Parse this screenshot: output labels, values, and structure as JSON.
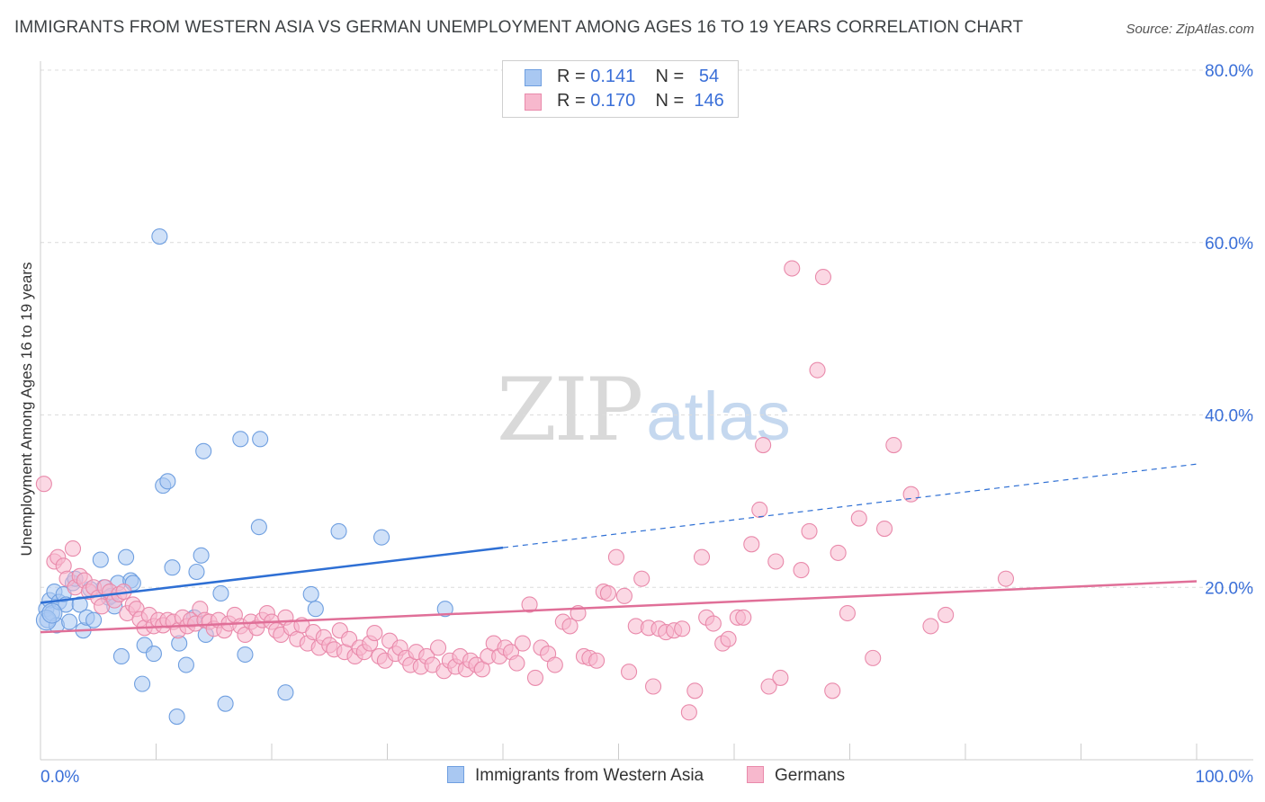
{
  "title": "IMMIGRANTS FROM WESTERN ASIA VS GERMAN UNEMPLOYMENT AMONG AGES 16 TO 19 YEARS CORRELATION CHART",
  "source": "Source: ZipAtlas.com",
  "watermark": {
    "zip": "ZIP",
    "atlas": "atlas"
  },
  "legend": {
    "rows": [
      {
        "r_label": "R =",
        "r_value": "0.141",
        "n_label": "N =",
        "n_value": "54",
        "color": "#a9c8f2",
        "border": "#6f9fe0"
      },
      {
        "r_label": "R =",
        "r_value": "0.170",
        "n_label": "N =",
        "n_value": "146",
        "color": "#f7b8cd",
        "border": "#e98aab"
      }
    ]
  },
  "bottom_legend": [
    {
      "label": "Immigrants from Western Asia",
      "color": "#a9c8f2",
      "border": "#6f9fe0"
    },
    {
      "label": "Germans",
      "color": "#f7b8cd",
      "border": "#e98aab"
    }
  ],
  "chart_data": {
    "type": "scatter",
    "title": "IMMIGRANTS FROM WESTERN ASIA VS GERMAN UNEMPLOYMENT AMONG AGES 16 TO 19 YEARS CORRELATION CHART",
    "xlabel": "",
    "ylabel": "Unemployment Among Ages 16 to 19 years",
    "xlim": [
      0,
      100
    ],
    "ylim": [
      0,
      80
    ],
    "x_tick_labels": [
      "0.0%",
      "100.0%"
    ],
    "y_tick_labels": [
      "20.0%",
      "40.0%",
      "60.0%",
      "80.0%"
    ],
    "y_ticks": [
      20,
      40,
      60,
      80
    ],
    "grid": true,
    "legend_position": "top-center",
    "series": [
      {
        "name": "Immigrants from Western Asia",
        "color": "#6f9fe0",
        "fill": "#a9c8f2",
        "trend": {
          "x0": 0,
          "y0": 18.2,
          "x1": 40,
          "y1": 24.6,
          "x_dashed_end": 100,
          "y_dashed_end": 34.3,
          "color": "#2e6fd4"
        },
        "points": [
          [
            0.5,
            17.5
          ],
          [
            0.6,
            16.2
          ],
          [
            0.8,
            18.5
          ],
          [
            1.0,
            17.0
          ],
          [
            1.2,
            19.5
          ],
          [
            1.4,
            15.6
          ],
          [
            1.6,
            18.3
          ],
          [
            2.0,
            19.2
          ],
          [
            2.2,
            18.0
          ],
          [
            2.5,
            16.0
          ],
          [
            2.8,
            20.5
          ],
          [
            3.0,
            21.0
          ],
          [
            3.4,
            18.0
          ],
          [
            3.7,
            15.0
          ],
          [
            4.0,
            16.5
          ],
          [
            4.3,
            19.8
          ],
          [
            4.6,
            16.2
          ],
          [
            5.2,
            23.2
          ],
          [
            5.5,
            20.0
          ],
          [
            5.9,
            18.8
          ],
          [
            6.1,
            19.0
          ],
          [
            6.4,
            17.8
          ],
          [
            6.7,
            20.5
          ],
          [
            7.0,
            12.0
          ],
          [
            7.4,
            23.5
          ],
          [
            7.8,
            20.8
          ],
          [
            8.0,
            20.5
          ],
          [
            8.8,
            8.8
          ],
          [
            9.0,
            13.3
          ],
          [
            9.8,
            12.3
          ],
          [
            10.3,
            60.7
          ],
          [
            10.6,
            31.8
          ],
          [
            11.0,
            32.3
          ],
          [
            11.4,
            22.3
          ],
          [
            11.8,
            5.0
          ],
          [
            12.0,
            13.5
          ],
          [
            12.6,
            11.0
          ],
          [
            13.3,
            16.5
          ],
          [
            13.5,
            21.8
          ],
          [
            13.9,
            23.7
          ],
          [
            14.1,
            35.8
          ],
          [
            14.3,
            14.5
          ],
          [
            15.6,
            19.3
          ],
          [
            16.0,
            6.5
          ],
          [
            17.3,
            37.2
          ],
          [
            17.7,
            12.2
          ],
          [
            18.9,
            27.0
          ],
          [
            19.0,
            37.2
          ],
          [
            21.2,
            7.8
          ],
          [
            23.4,
            19.2
          ],
          [
            23.8,
            17.5
          ],
          [
            25.8,
            26.5
          ],
          [
            29.5,
            25.8
          ],
          [
            35.0,
            17.5
          ]
        ]
      },
      {
        "name": "Germans",
        "color": "#e98aab",
        "fill": "#f7b8cd",
        "trend": {
          "x0": 0,
          "y0": 14.8,
          "x1": 100,
          "y1": 20.7,
          "color": "#e06f98"
        },
        "points": [
          [
            0.3,
            32.0
          ],
          [
            1.2,
            23.0
          ],
          [
            1.5,
            23.5
          ],
          [
            2.0,
            22.5
          ],
          [
            2.3,
            21.0
          ],
          [
            2.8,
            24.5
          ],
          [
            3.0,
            20.0
          ],
          [
            3.4,
            21.3
          ],
          [
            3.8,
            20.8
          ],
          [
            4.2,
            19.5
          ],
          [
            4.6,
            20.0
          ],
          [
            5.0,
            18.8
          ],
          [
            5.3,
            17.8
          ],
          [
            5.6,
            20.0
          ],
          [
            6.0,
            19.5
          ],
          [
            6.4,
            18.5
          ],
          [
            6.8,
            19.2
          ],
          [
            7.2,
            19.5
          ],
          [
            7.5,
            17.0
          ],
          [
            8.0,
            18.0
          ],
          [
            8.3,
            17.5
          ],
          [
            8.6,
            16.3
          ],
          [
            9.0,
            15.3
          ],
          [
            9.4,
            16.8
          ],
          [
            9.8,
            15.5
          ],
          [
            10.2,
            16.2
          ],
          [
            10.6,
            15.6
          ],
          [
            11.0,
            16.2
          ],
          [
            11.5,
            16.0
          ],
          [
            11.9,
            15.0
          ],
          [
            12.3,
            16.5
          ],
          [
            12.7,
            15.5
          ],
          [
            13.0,
            16.2
          ],
          [
            13.4,
            15.8
          ],
          [
            13.8,
            17.5
          ],
          [
            14.2,
            16.2
          ],
          [
            14.6,
            16.0
          ],
          [
            15.0,
            15.2
          ],
          [
            15.4,
            16.2
          ],
          [
            15.9,
            15.0
          ],
          [
            16.3,
            15.8
          ],
          [
            16.8,
            16.8
          ],
          [
            17.3,
            15.5
          ],
          [
            17.7,
            14.5
          ],
          [
            18.2,
            16.0
          ],
          [
            18.7,
            15.3
          ],
          [
            19.2,
            16.2
          ],
          [
            19.6,
            17.0
          ],
          [
            20.0,
            16.0
          ],
          [
            20.4,
            15.0
          ],
          [
            20.8,
            14.5
          ],
          [
            21.2,
            16.5
          ],
          [
            21.7,
            15.3
          ],
          [
            22.2,
            14.0
          ],
          [
            22.6,
            15.6
          ],
          [
            23.1,
            13.5
          ],
          [
            23.6,
            14.8
          ],
          [
            24.1,
            13.0
          ],
          [
            24.5,
            14.2
          ],
          [
            25.0,
            13.3
          ],
          [
            25.4,
            12.8
          ],
          [
            25.9,
            15.0
          ],
          [
            26.3,
            12.5
          ],
          [
            26.7,
            14.0
          ],
          [
            27.2,
            12.0
          ],
          [
            27.6,
            13.0
          ],
          [
            28.0,
            12.5
          ],
          [
            28.5,
            13.5
          ],
          [
            28.9,
            14.7
          ],
          [
            29.3,
            12.0
          ],
          [
            29.8,
            11.5
          ],
          [
            30.2,
            13.8
          ],
          [
            30.7,
            12.3
          ],
          [
            31.1,
            13.0
          ],
          [
            31.6,
            11.8
          ],
          [
            32.0,
            11.0
          ],
          [
            32.5,
            12.5
          ],
          [
            32.9,
            10.8
          ],
          [
            33.4,
            12.0
          ],
          [
            33.9,
            11.0
          ],
          [
            34.4,
            13.0
          ],
          [
            34.9,
            10.3
          ],
          [
            35.4,
            11.5
          ],
          [
            35.9,
            10.8
          ],
          [
            36.3,
            12.0
          ],
          [
            36.8,
            10.5
          ],
          [
            37.2,
            11.5
          ],
          [
            37.7,
            11.0
          ],
          [
            38.2,
            10.5
          ],
          [
            38.7,
            12.0
          ],
          [
            39.2,
            13.5
          ],
          [
            39.7,
            12.0
          ],
          [
            40.2,
            13.0
          ],
          [
            40.7,
            12.5
          ],
          [
            41.2,
            11.2
          ],
          [
            41.7,
            13.5
          ],
          [
            42.3,
            18.0
          ],
          [
            42.8,
            9.5
          ],
          [
            43.3,
            13.0
          ],
          [
            43.9,
            12.3
          ],
          [
            44.5,
            11.0
          ],
          [
            45.2,
            16.0
          ],
          [
            45.8,
            15.5
          ],
          [
            46.5,
            17.0
          ],
          [
            47.0,
            12.0
          ],
          [
            47.5,
            11.8
          ],
          [
            48.1,
            11.5
          ],
          [
            48.7,
            19.5
          ],
          [
            49.1,
            19.3
          ],
          [
            49.8,
            23.5
          ],
          [
            50.5,
            19.0
          ],
          [
            50.9,
            10.2
          ],
          [
            51.5,
            15.5
          ],
          [
            52.0,
            21.0
          ],
          [
            52.6,
            15.3
          ],
          [
            53.0,
            8.5
          ],
          [
            53.5,
            15.2
          ],
          [
            54.1,
            14.8
          ],
          [
            54.8,
            15.0
          ],
          [
            55.5,
            15.2
          ],
          [
            56.1,
            5.5
          ],
          [
            56.6,
            8.0
          ],
          [
            57.2,
            23.5
          ],
          [
            57.6,
            16.5
          ],
          [
            58.2,
            15.8
          ],
          [
            59.0,
            13.5
          ],
          [
            59.5,
            14.0
          ],
          [
            60.3,
            16.5
          ],
          [
            60.8,
            16.5
          ],
          [
            61.5,
            25.0
          ],
          [
            62.2,
            29.0
          ],
          [
            62.5,
            36.5
          ],
          [
            63.0,
            8.5
          ],
          [
            63.6,
            23.0
          ],
          [
            64.0,
            9.5
          ],
          [
            65.0,
            57.0
          ],
          [
            65.8,
            22.0
          ],
          [
            66.5,
            26.5
          ],
          [
            67.2,
            45.2
          ],
          [
            67.7,
            56.0
          ],
          [
            68.5,
            8.0
          ],
          [
            69.0,
            24.0
          ],
          [
            69.8,
            17.0
          ],
          [
            70.8,
            28.0
          ],
          [
            72.0,
            11.8
          ],
          [
            73.0,
            26.8
          ],
          [
            73.8,
            36.5
          ],
          [
            75.3,
            30.8
          ],
          [
            77.0,
            15.5
          ],
          [
            78.3,
            16.8
          ],
          [
            83.5,
            21.0
          ]
        ]
      }
    ]
  }
}
